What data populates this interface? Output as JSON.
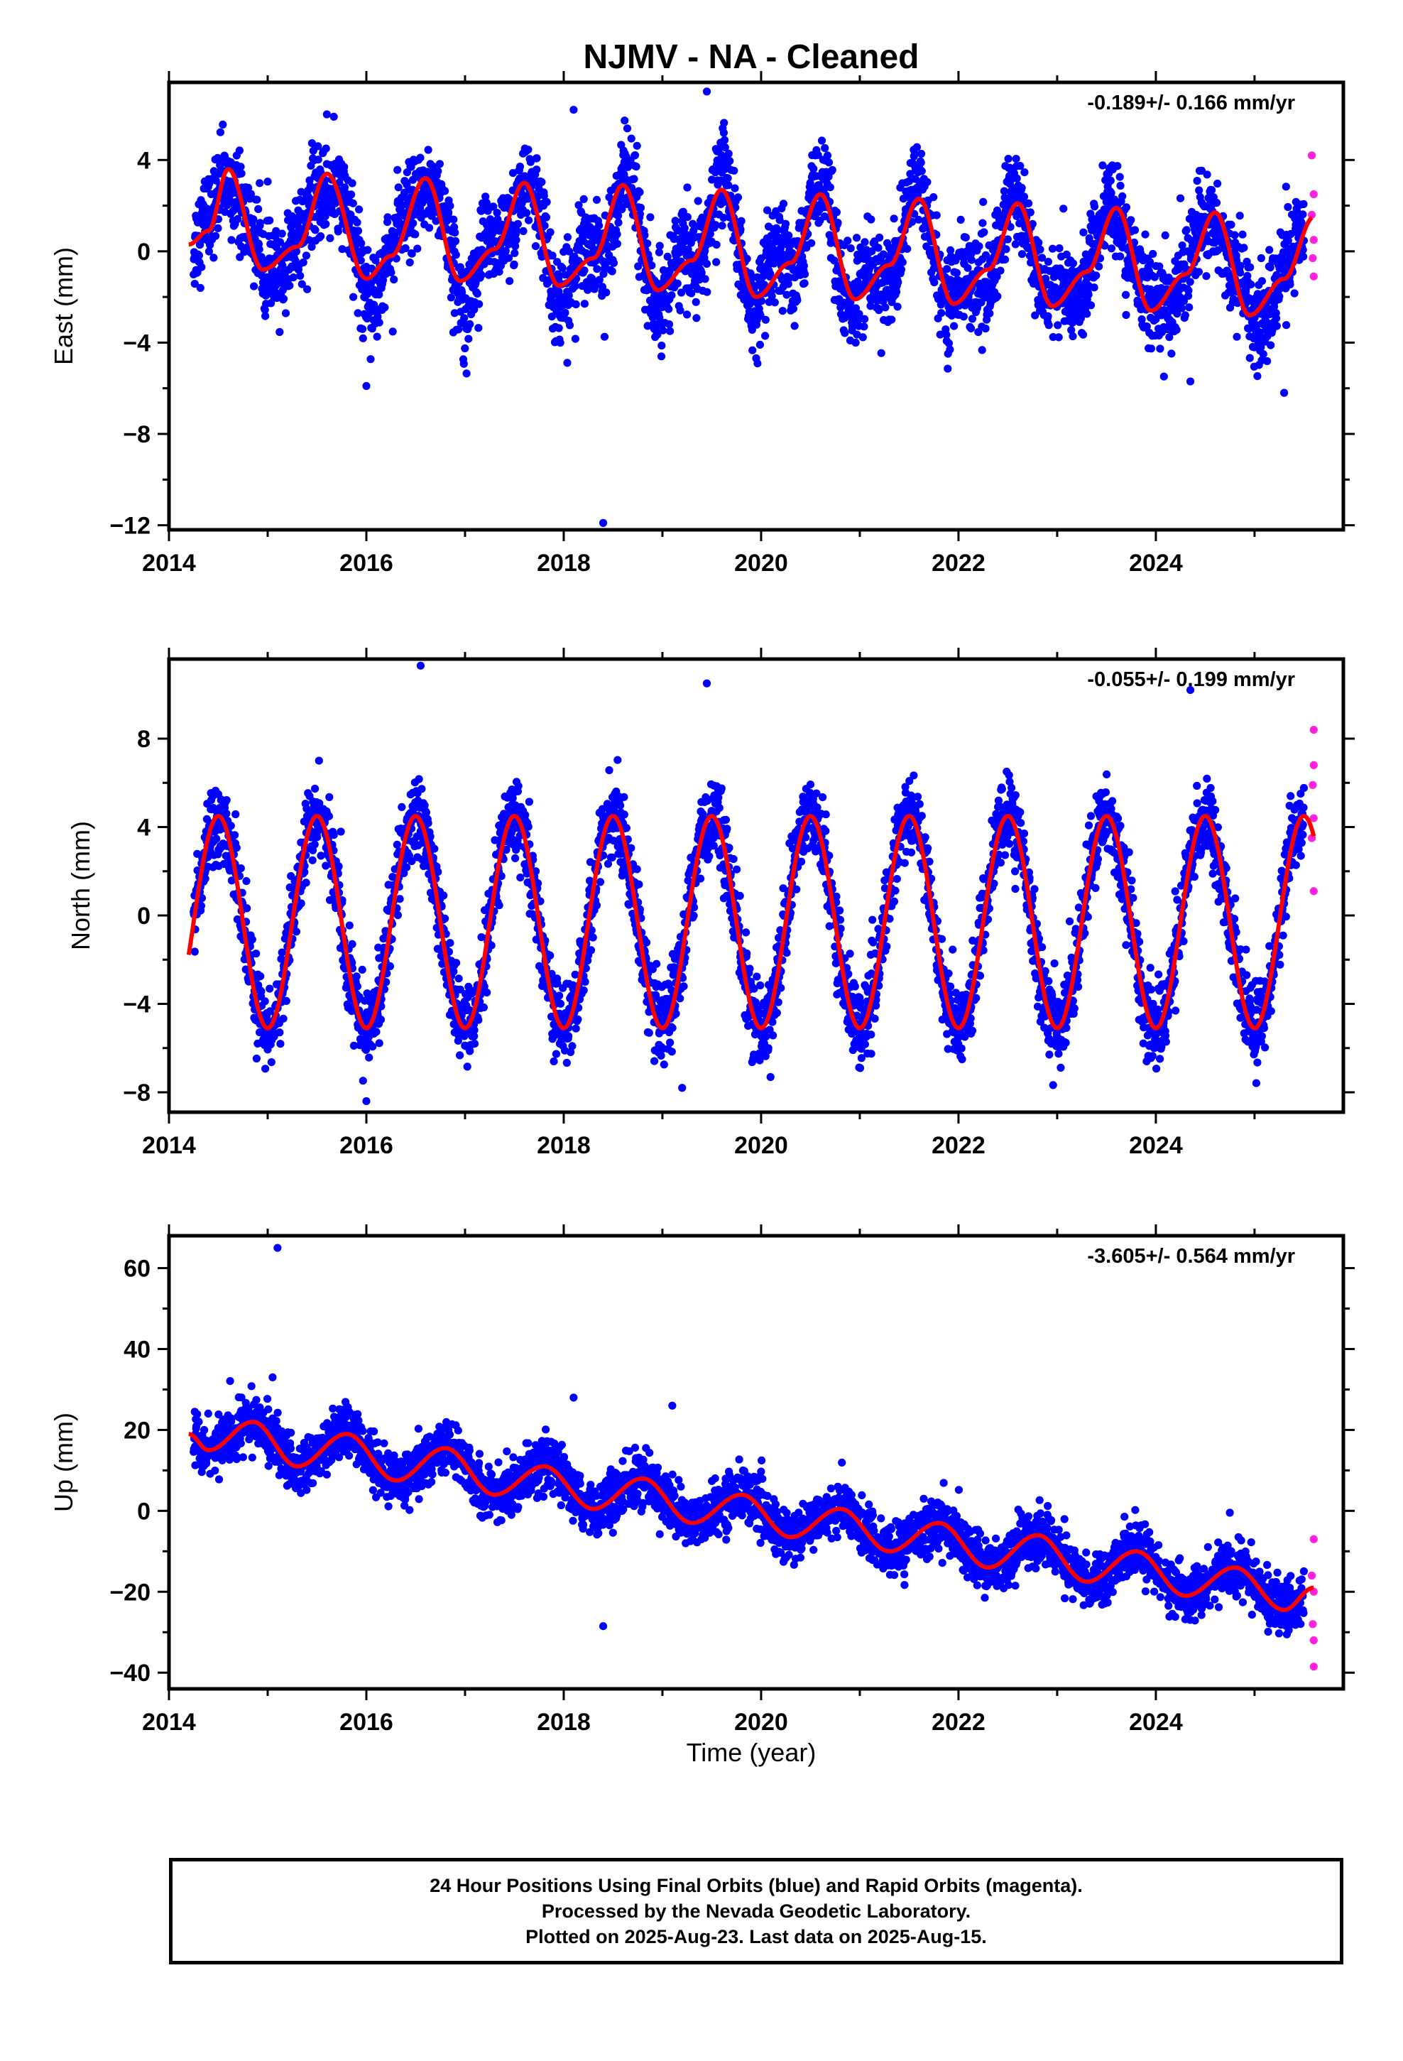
{
  "title": "NJMV  - NA - Cleaned",
  "xlabel": "Time (year)",
  "colors": {
    "final": "#0000ff",
    "rapid": "#ff22dd",
    "model": "#ff0000",
    "frame": "#000000"
  },
  "footer": {
    "line1": "24 Hour Positions Using Final Orbits (blue) and Rapid Orbits (magenta).",
    "line2": "Processed by the Nevada Geodetic Laboratory.",
    "line3": "Plotted on 2025-Aug-23. Last data on 2025-Aug-15."
  },
  "chart_data": [
    {
      "type": "scatter",
      "ylabel": "East (mm)",
      "rate": "-0.189+/- 0.166 mm/yr",
      "xlim": [
        2014,
        2025.9
      ],
      "ylim": [
        -12.2,
        7.4
      ],
      "xticks": [
        2014,
        2016,
        2018,
        2020,
        2022,
        2024
      ],
      "yticks": [
        4,
        0,
        -4,
        -8,
        -12
      ],
      "series": [
        {
          "name": "Final Orbits (blue)",
          "x_range": [
            2014.25,
            2025.5
          ]
        },
        {
          "name": "Rapid Orbits (magenta)",
          "x_range": [
            2025.5,
            2025.62
          ]
        }
      ],
      "model_points": [
        [
          2014.2,
          0.3
        ],
        [
          2014.4,
          0.9
        ],
        [
          2014.6,
          3.6
        ],
        [
          2014.95,
          -0.8
        ],
        [
          2015.3,
          0.2
        ],
        [
          2015.6,
          3.4
        ],
        [
          2016.0,
          -1.2
        ],
        [
          2016.25,
          -0.2
        ],
        [
          2016.6,
          3.2
        ],
        [
          2016.95,
          -1.3
        ],
        [
          2017.3,
          0.1
        ],
        [
          2017.6,
          3.0
        ],
        [
          2017.95,
          -1.5
        ],
        [
          2018.3,
          -0.3
        ],
        [
          2018.6,
          2.9
        ],
        [
          2018.95,
          -1.7
        ],
        [
          2019.3,
          -0.4
        ],
        [
          2019.6,
          2.7
        ],
        [
          2019.95,
          -2.0
        ],
        [
          2020.3,
          -0.5
        ],
        [
          2020.6,
          2.5
        ],
        [
          2020.95,
          -2.1
        ],
        [
          2021.3,
          -0.6
        ],
        [
          2021.6,
          2.3
        ],
        [
          2021.95,
          -2.3
        ],
        [
          2022.3,
          -0.8
        ],
        [
          2022.6,
          2.1
        ],
        [
          2022.95,
          -2.4
        ],
        [
          2023.3,
          -0.9
        ],
        [
          2023.6,
          1.9
        ],
        [
          2023.95,
          -2.6
        ],
        [
          2024.3,
          -1.0
        ],
        [
          2024.6,
          1.7
        ],
        [
          2024.95,
          -2.8
        ],
        [
          2025.3,
          -1.2
        ],
        [
          2025.6,
          1.5
        ]
      ],
      "outliers": [
        [
          2018.4,
          -11.9
        ],
        [
          2018.1,
          6.2
        ],
        [
          2019.45,
          7.0
        ],
        [
          2015.6,
          6.0
        ],
        [
          2024.35,
          -5.7
        ],
        [
          2025.3,
          -6.2
        ],
        [
          2016.0,
          -5.9
        ]
      ],
      "rapid_points": [
        [
          2025.58,
          4.2
        ],
        [
          2025.6,
          2.5
        ],
        [
          2025.58,
          1.6
        ],
        [
          2025.6,
          0.5
        ],
        [
          2025.59,
          -0.3
        ],
        [
          2025.6,
          -1.1
        ]
      ]
    },
    {
      "type": "scatter",
      "ylabel": "North (mm)",
      "rate": "-0.055+/- 0.199 mm/yr",
      "xlim": [
        2014,
        2025.9
      ],
      "ylim": [
        -8.9,
        11.6
      ],
      "xticks": [
        2014,
        2016,
        2018,
        2020,
        2022,
        2024
      ],
      "yticks": [
        8,
        4,
        0,
        -4,
        -8
      ],
      "series": [
        {
          "name": "Final Orbits (blue)",
          "x_range": [
            2014.25,
            2025.5
          ]
        },
        {
          "name": "Rapid Orbits (magenta)",
          "x_range": [
            2025.5,
            2025.62
          ]
        }
      ],
      "annual_amplitude": 4.8,
      "annual_peak": 2014.5,
      "outliers": [
        [
          2016.55,
          11.3
        ],
        [
          2019.45,
          10.5
        ],
        [
          2024.35,
          10.2
        ],
        [
          2016.0,
          -8.4
        ],
        [
          2019.2,
          -7.8
        ],
        [
          2017.9,
          -6.6
        ]
      ],
      "rapid_points": [
        [
          2025.6,
          8.4
        ],
        [
          2025.6,
          6.8
        ],
        [
          2025.59,
          5.9
        ],
        [
          2025.6,
          4.4
        ],
        [
          2025.58,
          3.5
        ],
        [
          2025.6,
          1.1
        ]
      ]
    },
    {
      "type": "scatter",
      "ylabel": "Up (mm)",
      "rate": "-3.605+/- 0.564 mm/yr",
      "xlim": [
        2014,
        2025.9
      ],
      "ylim": [
        -44,
        68
      ],
      "xticks": [
        2014,
        2016,
        2018,
        2020,
        2022,
        2024
      ],
      "yticks": [
        60,
        40,
        20,
        0,
        -20,
        -40
      ],
      "series": [
        {
          "name": "Final Orbits (blue)",
          "x_range": [
            2014.25,
            2025.5
          ]
        },
        {
          "name": "Rapid Orbits (magenta)",
          "x_range": [
            2025.5,
            2025.62
          ]
        }
      ],
      "model_points": [
        [
          2014.2,
          19
        ],
        [
          2014.4,
          15
        ],
        [
          2014.85,
          22
        ],
        [
          2015.3,
          11
        ],
        [
          2015.8,
          19
        ],
        [
          2016.3,
          7.5
        ],
        [
          2016.8,
          15.5
        ],
        [
          2017.3,
          4
        ],
        [
          2017.8,
          11
        ],
        [
          2018.3,
          0.5
        ],
        [
          2018.8,
          8
        ],
        [
          2019.3,
          -3
        ],
        [
          2019.8,
          4
        ],
        [
          2020.3,
          -6.5
        ],
        [
          2020.8,
          0.5
        ],
        [
          2021.3,
          -10
        ],
        [
          2021.8,
          -3
        ],
        [
          2022.3,
          -14
        ],
        [
          2022.8,
          -6
        ],
        [
          2023.3,
          -17.5
        ],
        [
          2023.8,
          -10
        ],
        [
          2024.3,
          -21
        ],
        [
          2024.8,
          -14
        ],
        [
          2025.3,
          -24.5
        ],
        [
          2025.6,
          -19
        ]
      ],
      "outliers": [
        [
          2015.1,
          65
        ],
        [
          2015.05,
          33
        ],
        [
          2018.4,
          -28.5
        ],
        [
          2019.1,
          26
        ],
        [
          2018.1,
          28
        ]
      ],
      "rapid_points": [
        [
          2025.6,
          -7
        ],
        [
          2025.58,
          -16
        ],
        [
          2025.6,
          -20
        ],
        [
          2025.59,
          -28
        ],
        [
          2025.6,
          -32
        ],
        [
          2025.6,
          -38.5
        ]
      ]
    }
  ]
}
